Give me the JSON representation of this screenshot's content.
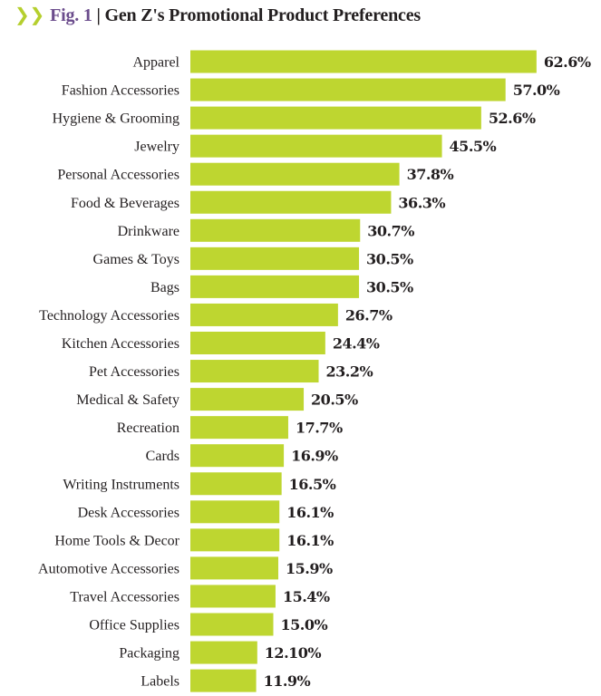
{
  "chart_data": {
    "type": "bar",
    "orientation": "horizontal",
    "title_prefix": "Fig. 1",
    "title": "Gen Z's Promotional Product Preferences",
    "categories": [
      "Apparel",
      "Fashion Accessories",
      "Hygiene & Grooming",
      "Jewelry",
      "Personal Accessories",
      "Food & Beverages",
      "Drinkware",
      "Games & Toys",
      "Bags",
      "Technology Accessories",
      "Kitchen Accessories",
      "Pet Accessories",
      "Medical & Safety",
      "Recreation",
      "Cards",
      "Writing Instruments",
      "Desk Accessories",
      "Home Tools & Decor",
      "Automotive Accessories",
      "Travel Accessories",
      "Office Supplies",
      "Packaging",
      "Labels"
    ],
    "values": [
      62.6,
      57.0,
      52.6,
      45.5,
      37.8,
      36.3,
      30.7,
      30.5,
      30.5,
      26.7,
      24.4,
      23.2,
      20.5,
      17.7,
      16.9,
      16.5,
      16.1,
      16.1,
      15.9,
      15.4,
      15.0,
      12.1,
      11.9
    ],
    "value_labels": [
      "62.6%",
      "57.0%",
      "52.6%",
      "45.5%",
      "37.8%",
      "36.3%",
      "30.7%",
      "30.5%",
      "30.5%",
      "26.7%",
      "24.4%",
      "23.2%",
      "20.5%",
      "17.7%",
      "16.9%",
      "16.5%",
      "16.1%",
      "16.1%",
      "15.9%",
      "15.4%",
      "15.0%",
      "12.10%",
      "11.9%"
    ],
    "xlabel": "",
    "ylabel": "",
    "grid": false,
    "colors": {
      "bar": "#bed630",
      "title_accent": "#6b4c8c",
      "chevron": "#b5cf2e",
      "text": "#231f20"
    }
  }
}
